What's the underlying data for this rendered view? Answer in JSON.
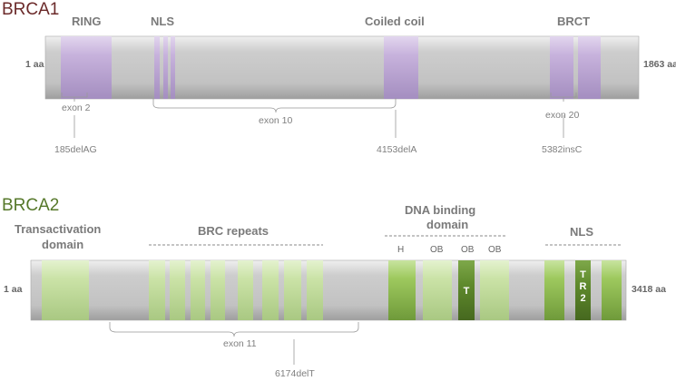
{
  "brca1": {
    "title": "BRCA1",
    "start": "1 aa",
    "end": "1863 aa",
    "domains": {
      "ring": "RING",
      "nls": "NLS",
      "coiled": "Coiled coil",
      "brct": "BRCT"
    },
    "exons": {
      "e2": "exon 2",
      "e10": "exon 10",
      "e20": "exon  20"
    },
    "mutations": {
      "m1": "185delAG",
      "m2": "4153delA",
      "m3": "5382insC"
    }
  },
  "brca2": {
    "title": "BRCA2",
    "start": "1 aa",
    "end": "3418 aa",
    "transactivation": "Transactivation",
    "transactivation2": "domain",
    "brc": "BRC  repeats",
    "dna1": "DNA binding",
    "dna2": "domain",
    "nls": "NLS",
    "sub": {
      "h": "H",
      "ob1": "OB",
      "ob2": "OB",
      "ob3": "OB"
    },
    "t": "T",
    "tr2": [
      "T",
      "R",
      "2"
    ],
    "exon": "exon 11",
    "mutation": "6174delT"
  },
  "colors": {
    "purple": "#c8b2dc",
    "green_light": "#c9e2a4",
    "green": "#9ec95e",
    "green_dark": "#5f8a2c",
    "bar": "#c6c6c6"
  }
}
